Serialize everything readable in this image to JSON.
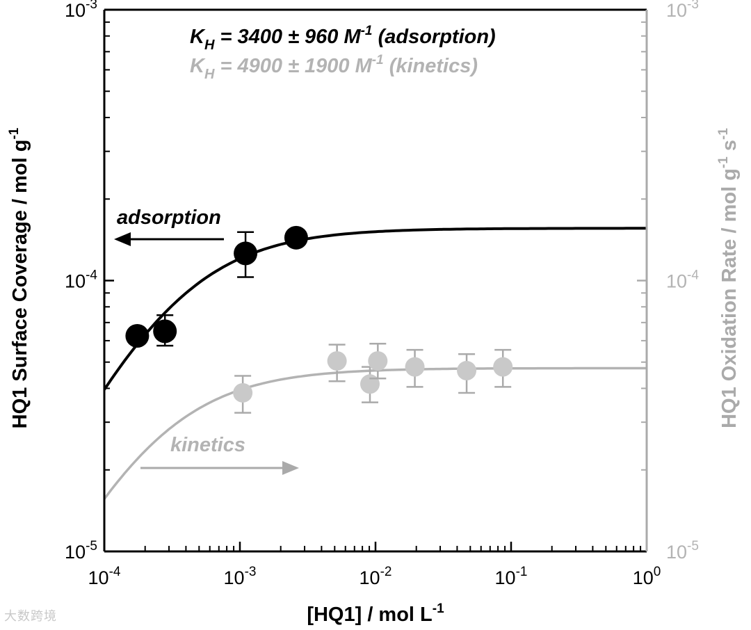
{
  "chart_data": {
    "type": "scatter",
    "x_scale": "log",
    "y_scale": "log",
    "xlim": [
      0.0001,
      1
    ],
    "ylim_left": [
      1e-05,
      0.001
    ],
    "ylim_right": [
      1e-05,
      0.001
    ],
    "xlabel_base": "[HQ1] / mol L",
    "xlabel_exp": "-1",
    "ylabel_left": "HQ1 Surface Coverage / mol g",
    "ylabel_left_exp": "-1",
    "ylabel_right_base": "HQ1 Oxidation Rate / mol g",
    "ylabel_right_exp1": "-1",
    "ylabel_right_mid": " s",
    "ylabel_right_exp2": "-1",
    "x_ticks": [
      {
        "base": "10",
        "exp": "-4",
        "value": 0.0001
      },
      {
        "base": "10",
        "exp": "-3",
        "value": 0.001
      },
      {
        "base": "10",
        "exp": "-2",
        "value": 0.01
      },
      {
        "base": "10",
        "exp": "-1",
        "value": 0.1
      },
      {
        "base": "10",
        "exp": "0",
        "value": 1
      }
    ],
    "y_ticks_left": [
      {
        "base": "10",
        "exp": "-5",
        "value": 1e-05
      },
      {
        "base": "10",
        "exp": "-4",
        "value": 0.0001
      },
      {
        "base": "10",
        "exp": "-3",
        "value": 0.001
      }
    ],
    "y_ticks_right": [
      {
        "base": "10",
        "exp": "-5",
        "value": 1e-05
      },
      {
        "base": "10",
        "exp": "-4",
        "value": 0.0001
      },
      {
        "base": "10",
        "exp": "-3",
        "value": 0.001
      }
    ],
    "annotations": {
      "kh_adsorption": {
        "k": "K",
        "sub": "H",
        "mid": " = 3400 ± 960 M",
        "exp": "-1",
        "tail": " (adsorption)"
      },
      "kh_kinetics": {
        "k": "K",
        "sub": "H",
        "mid": " = 4900 ± 1900 M",
        "exp": "-1",
        "tail": " (kinetics)"
      },
      "adsorption_label": "adsorption",
      "kinetics_label": "kinetics"
    },
    "colors": {
      "adsorption": "#000000",
      "kinetics": "#b3b3b3",
      "kinetics_points": "#c9c9c9"
    },
    "series": [
      {
        "axis": "left",
        "points": [
          {
            "x": 0.000175,
            "y": 6.25e-05,
            "err": null
          },
          {
            "x": 0.00028,
            "y": 6.5e-05,
            "err": [
              5.75e-05,
              7.45e-05
            ]
          },
          {
            "x": 0.0011,
            "y": 0.000126,
            "err": [
              0.000103,
              0.000151
            ]
          },
          {
            "x": 0.0026,
            "y": 0.000144,
            "err": null
          }
        ],
        "fit": {
          "qmax": 0.000156,
          "K": 3400,
          "x_from": 0.0001,
          "x_to": 1
        }
      },
      {
        "axis": "right",
        "points": [
          {
            "x": 0.00105,
            "y": 3.85e-05,
            "err": [
              3.25e-05,
              4.45e-05
            ]
          },
          {
            "x": 0.0052,
            "y": 5.05e-05,
            "err": [
              4.25e-05,
              5.8e-05
            ]
          },
          {
            "x": 0.0091,
            "y": 4.15e-05,
            "err": [
              3.55e-05,
              4.8e-05
            ]
          },
          {
            "x": 0.0104,
            "y": 5.05e-05,
            "err": [
              4.35e-05,
              5.85e-05
            ]
          },
          {
            "x": 0.0195,
            "y": 4.8e-05,
            "err": [
              4.05e-05,
              5.55e-05
            ]
          },
          {
            "x": 0.047,
            "y": 4.65e-05,
            "err": [
              3.85e-05,
              5.35e-05
            ]
          },
          {
            "x": 0.087,
            "y": 4.8e-05,
            "err": [
              4.05e-05,
              5.55e-05
            ]
          }
        ],
        "fit": {
          "qmax": 4.75e-05,
          "K": 4900,
          "x_from": 0.0001,
          "x_to": 1
        }
      }
    ]
  },
  "watermark": "大数跨境"
}
